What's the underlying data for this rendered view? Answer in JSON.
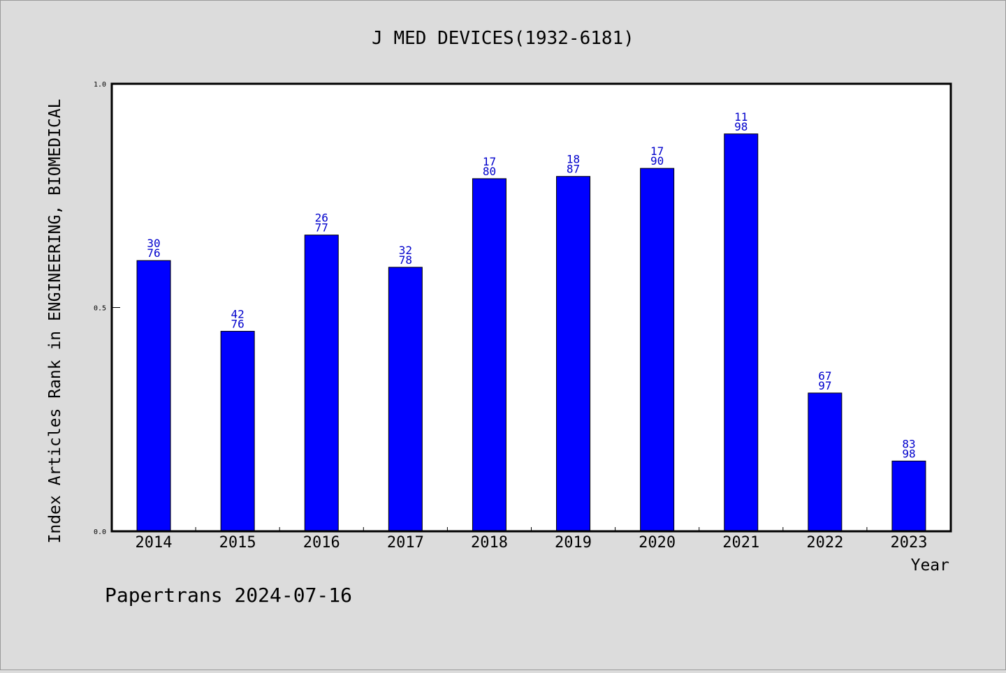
{
  "chart_data": {
    "type": "bar",
    "title": "J MED DEVICES(1932-6181)",
    "xlabel": "Year",
    "ylabel": "Index Articles Rank in ENGINEERING, BIOMEDICAL",
    "ylim": [
      0,
      1.0
    ],
    "yticks": [
      "0.0",
      "0.5",
      "1.0"
    ],
    "categories": [
      "2014",
      "2015",
      "2016",
      "2017",
      "2018",
      "2019",
      "2020",
      "2021",
      "2022",
      "2023"
    ],
    "values": [
      0.605,
      0.447,
      0.662,
      0.59,
      0.788,
      0.793,
      0.811,
      0.888,
      0.309,
      0.157
    ],
    "labels_top": [
      "30",
      "42",
      "26",
      "32",
      "17",
      "18",
      "17",
      "11",
      "67",
      "83"
    ],
    "labels_bottom": [
      "76",
      "76",
      "77",
      "78",
      "80",
      "87",
      "90",
      "98",
      "97",
      "98"
    ],
    "bar_color": "#0000ff",
    "label_color": "#0000cc",
    "grid": false
  },
  "footer": {
    "credit": "Papertrans 2024-07-16"
  }
}
